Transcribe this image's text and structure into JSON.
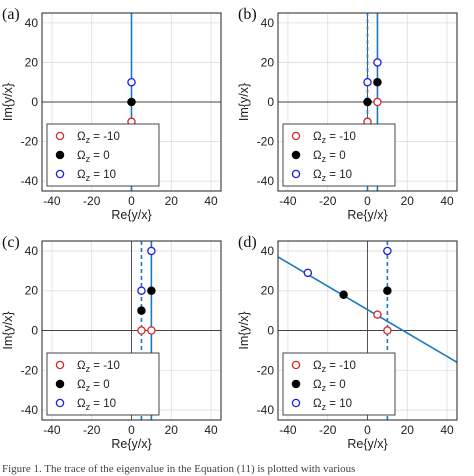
{
  "caption": "Figure 1. The trace of the eigenvalue in the Equation (11) is plotted with various",
  "legend": {
    "symbol": "Ω",
    "subscript": "z",
    "entries": [
      {
        "value_text": "= -10",
        "color": "#d62728",
        "filled": false
      },
      {
        "value_text": "= 0",
        "color": "#000000",
        "filled": true
      },
      {
        "value_text": "= 10",
        "color": "#1f1fd8",
        "filled": false
      }
    ]
  },
  "chart_data": [
    {
      "panel": "(a)",
      "type": "scatter",
      "xlabel": "Re{y/x}",
      "ylabel": "Im{y/x}",
      "xlim": [
        -45,
        45
      ],
      "ylim": [
        -45,
        45
      ],
      "xticks": [
        -40,
        -20,
        0,
        20,
        40
      ],
      "yticks": [
        -40,
        -20,
        0,
        20,
        40
      ],
      "points": [
        {
          "series": "Ωz = -10",
          "x": 0,
          "y": -10
        },
        {
          "series": "Ωz = 0",
          "x": 0,
          "y": 0
        },
        {
          "series": "Ωz = 10",
          "x": 0,
          "y": 10
        }
      ],
      "lines": [
        {
          "style": "solid",
          "color": "#1a7ac0",
          "from": [
            0,
            -45
          ],
          "to": [
            0,
            45
          ]
        }
      ]
    },
    {
      "panel": "(b)",
      "type": "scatter",
      "xlabel": "Re{y/x}",
      "ylabel": "Im{y/x}",
      "xlim": [
        -45,
        45
      ],
      "ylim": [
        -45,
        45
      ],
      "xticks": [
        -40,
        -20,
        0,
        20,
        40
      ],
      "yticks": [
        -40,
        -20,
        0,
        20,
        40
      ],
      "points": [
        {
          "series": "Ωz = -10",
          "x": 0,
          "y": -10
        },
        {
          "series": "Ωz = -10",
          "x": 5,
          "y": 0
        },
        {
          "series": "Ωz = 0",
          "x": 0,
          "y": 0
        },
        {
          "series": "Ωz = 0",
          "x": 5,
          "y": 10
        },
        {
          "series": "Ωz = 10",
          "x": 0,
          "y": 10
        },
        {
          "series": "Ωz = 10",
          "x": 5,
          "y": 20
        }
      ],
      "lines": [
        {
          "style": "dashed",
          "color": "#1a7ac0",
          "from": [
            0,
            -45
          ],
          "to": [
            0,
            45
          ]
        },
        {
          "style": "solid",
          "color": "#1a7ac0",
          "from": [
            5,
            -45
          ],
          "to": [
            5,
            45
          ]
        }
      ]
    },
    {
      "panel": "(c)",
      "type": "scatter",
      "xlabel": "Re{y/x}",
      "ylabel": "Im{y/x}",
      "xlim": [
        -45,
        45
      ],
      "ylim": [
        -45,
        45
      ],
      "xticks": [
        -40,
        -20,
        0,
        20,
        40
      ],
      "yticks": [
        -40,
        -20,
        0,
        20,
        40
      ],
      "points": [
        {
          "series": "Ωz = -10",
          "x": 5,
          "y": 0
        },
        {
          "series": "Ωz = -10",
          "x": 10,
          "y": 0
        },
        {
          "series": "Ωz = 0",
          "x": 5,
          "y": 10
        },
        {
          "series": "Ωz = 0",
          "x": 10,
          "y": 20
        },
        {
          "series": "Ωz = 10",
          "x": 5,
          "y": 20
        },
        {
          "series": "Ωz = 10",
          "x": 10,
          "y": 40
        }
      ],
      "lines": [
        {
          "style": "dashed",
          "color": "#1a7ac0",
          "from": [
            5,
            -45
          ],
          "to": [
            5,
            45
          ]
        },
        {
          "style": "solid",
          "color": "#1a7ac0",
          "from": [
            10,
            -45
          ],
          "to": [
            10,
            45
          ]
        }
      ]
    },
    {
      "panel": "(d)",
      "type": "scatter",
      "xlabel": "Re{y/x}",
      "ylabel": "Im{y/x}",
      "xlim": [
        -45,
        45
      ],
      "ylim": [
        -45,
        45
      ],
      "xticks": [
        -40,
        -20,
        0,
        20,
        40
      ],
      "yticks": [
        -40,
        -20,
        0,
        20,
        40
      ],
      "points": [
        {
          "series": "Ωz = -10",
          "x": 5,
          "y": 8
        },
        {
          "series": "Ωz = -10",
          "x": 10,
          "y": 0
        },
        {
          "series": "Ωz = 0",
          "x": -12,
          "y": 18
        },
        {
          "series": "Ωz = 0",
          "x": 10,
          "y": 20
        },
        {
          "series": "Ωz = 10",
          "x": -30,
          "y": 29
        },
        {
          "series": "Ωz = 10",
          "x": 10,
          "y": 40
        }
      ],
      "lines": [
        {
          "style": "dashed",
          "color": "#1a7ac0",
          "from": [
            10,
            -45
          ],
          "to": [
            10,
            45
          ]
        },
        {
          "style": "solid",
          "color": "#1a7ac0",
          "from": [
            -45,
            37
          ],
          "to": [
            45,
            -16
          ]
        }
      ]
    }
  ]
}
